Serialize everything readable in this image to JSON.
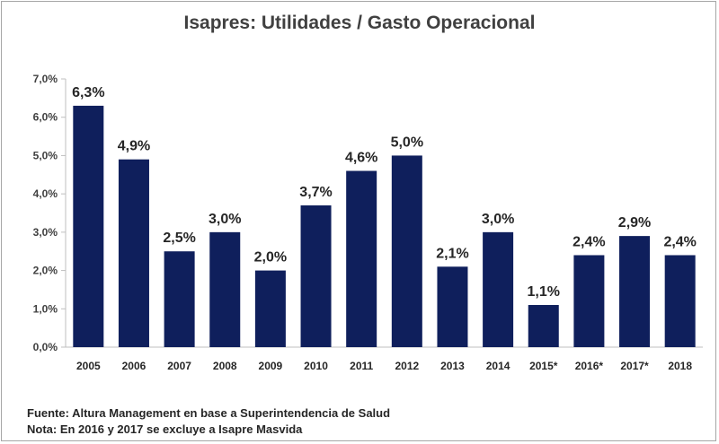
{
  "chart_data": {
    "type": "bar",
    "title": "Isapres: Utilidades / Gasto Operacional",
    "categories": [
      "2005",
      "2006",
      "2007",
      "2008",
      "2009",
      "2010",
      "2011",
      "2012",
      "2013",
      "2014",
      "2015*",
      "2016*",
      "2017*",
      "2018"
    ],
    "values": [
      6.3,
      4.9,
      2.5,
      3.0,
      2.0,
      3.7,
      4.6,
      5.0,
      2.1,
      3.0,
      1.1,
      2.4,
      2.9,
      2.4
    ],
    "data_labels": [
      "6,3%",
      "4,9%",
      "2,5%",
      "3,0%",
      "2,0%",
      "3,7%",
      "4,6%",
      "5,0%",
      "2,1%",
      "3,0%",
      "1,1%",
      "2,4%",
      "2,9%",
      "2,4%"
    ],
    "y_ticks": [
      "0,0%",
      "1,0%",
      "2,0%",
      "3,0%",
      "4,0%",
      "5,0%",
      "6,0%",
      "7,0%"
    ],
    "ylim": [
      0,
      7
    ],
    "xlabel": "",
    "ylabel": "",
    "grid": false,
    "bar_color": "#0f1f5c",
    "axis_color": "#bfbfbf"
  },
  "notes": {
    "source": "Fuente: Altura Management en base a Superintendencia de Salud",
    "note": "Nota: En 2016 y 2017 se excluye a Isapre Masvida"
  }
}
